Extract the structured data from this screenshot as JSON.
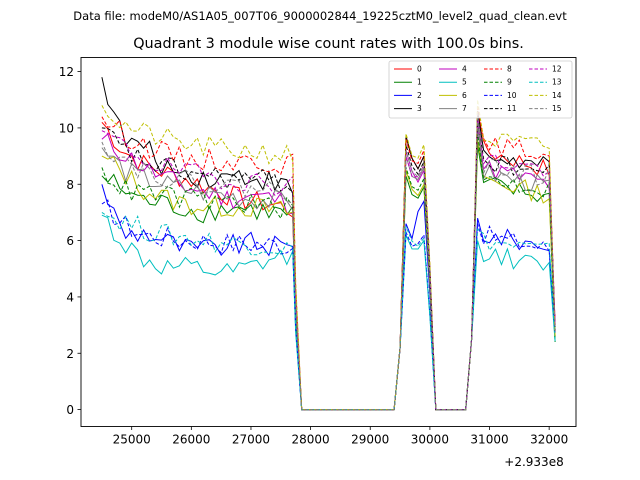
{
  "suptitle": "Data file: modeM0/AS1A05_007T06_9000002844_19225cztM0_level2_quad_clean.evt",
  "chart_data": {
    "type": "line",
    "title": "Quadrant 3 module wise count rates with 100.0s bins.",
    "xlabel": "",
    "ylabel": "",
    "x_offset_text": "+2.933e8",
    "xlim": [
      24150,
      32450
    ],
    "ylim": [
      -0.6,
      12.5
    ],
    "xticks": [
      25000,
      26000,
      27000,
      28000,
      29000,
      30000,
      31000,
      32000
    ],
    "yticks": [
      0,
      2,
      4,
      6,
      8,
      10,
      12
    ],
    "legend_position": "top-right",
    "series": [
      {
        "name": "0",
        "color": "#ff0000",
        "dash": "solid",
        "seg1": [
          10.2,
          9.2,
          8.7,
          8.4,
          8.2,
          7.9,
          7.6,
          7.4,
          7.3,
          7.1
        ],
        "g1": [
          9.7,
          9.0
        ],
        "g2": [
          10.6,
          9.2,
          8.5
        ]
      },
      {
        "name": "1",
        "color": "#008000",
        "dash": "solid",
        "seg1": [
          8.3,
          7.8,
          7.4,
          7.3,
          7.1,
          7.0,
          7.2,
          7.1,
          7.0,
          6.9
        ],
        "g1": [
          8.3,
          7.9
        ],
        "g2": [
          9.4,
          8.0,
          7.5
        ]
      },
      {
        "name": "2",
        "color": "#0000ff",
        "dash": "solid",
        "seg1": [
          8.0,
          6.2,
          6.3,
          6.0,
          5.7,
          5.7,
          5.8,
          5.9,
          5.8,
          5.7
        ],
        "g1": [
          6.6,
          7.4
        ],
        "g2": [
          6.8,
          6.2,
          5.8
        ]
      },
      {
        "name": "3",
        "color": "#000000",
        "dash": "solid",
        "seg1": [
          11.8,
          9.6,
          9.3,
          8.6,
          8.4,
          8.2,
          8.3,
          8.3,
          8.1,
          7.8
        ],
        "g1": [
          9.7,
          9.0
        ],
        "g2": [
          10.6,
          9.0,
          8.6
        ]
      },
      {
        "name": "4",
        "color": "#bf00bf",
        "dash": "solid",
        "seg1": [
          9.6,
          9.1,
          8.6,
          8.2,
          7.9,
          7.7,
          7.5,
          7.6,
          7.5,
          7.3
        ],
        "g1": [
          9.2,
          8.5
        ],
        "g2": [
          10.0,
          8.6,
          8.0
        ]
      },
      {
        "name": "5",
        "color": "#00bfbf",
        "dash": "solid",
        "seg1": [
          6.9,
          5.9,
          5.3,
          5.0,
          5.0,
          4.9,
          4.8,
          5.0,
          5.3,
          5.4
        ],
        "g1": [
          6.2,
          6.0
        ],
        "g2": [
          6.0,
          5.6,
          5.0
        ]
      },
      {
        "name": "6",
        "color": "#bfbf00",
        "dash": "solid",
        "seg1": [
          9.0,
          8.4,
          7.8,
          7.5,
          7.3,
          7.2,
          7.2,
          7.2,
          7.1,
          7.0
        ],
        "g1": [
          8.5,
          8.0
        ],
        "g2": [
          9.6,
          8.2,
          7.6
        ]
      },
      {
        "name": "7",
        "color": "#808080",
        "dash": "solid",
        "seg1": [
          9.3,
          8.5,
          8.2,
          8.0,
          7.8,
          7.7,
          7.6,
          7.5,
          7.4,
          7.3
        ],
        "g1": [
          9.0,
          8.6
        ],
        "g2": [
          10.2,
          8.4,
          7.9
        ]
      },
      {
        "name": "8",
        "color": "#ff0000",
        "dash": "dashed",
        "seg1": [
          10.4,
          9.8,
          9.4,
          9.1,
          8.9,
          8.9,
          8.8,
          8.8,
          8.8,
          8.7
        ],
        "g1": [
          9.6,
          9.2
        ],
        "g2": [
          10.8,
          9.4,
          9.1
        ]
      },
      {
        "name": "9",
        "color": "#008000",
        "dash": "dashed",
        "seg1": [
          8.6,
          7.8,
          7.7,
          7.6,
          7.5,
          7.4,
          7.4,
          7.3,
          7.2,
          7.1
        ],
        "g1": [
          8.6,
          8.2
        ],
        "g2": [
          9.8,
          8.2,
          7.8
        ]
      },
      {
        "name": "10",
        "color": "#0000ff",
        "dash": "dashed",
        "seg1": [
          7.3,
          6.6,
          6.2,
          6.1,
          6.0,
          6.0,
          5.9,
          5.9,
          5.9,
          5.8
        ],
        "g1": [
          6.3,
          6.2
        ],
        "g2": [
          6.6,
          6.2,
          5.7
        ]
      },
      {
        "name": "11",
        "color": "#000000",
        "dash": "dashed",
        "seg1": [
          10.0,
          9.2,
          8.8,
          8.6,
          8.4,
          8.3,
          8.2,
          8.2,
          8.1,
          8.0
        ],
        "g1": [
          9.4,
          8.8
        ],
        "g2": [
          10.3,
          8.8,
          8.4
        ]
      },
      {
        "name": "12",
        "color": "#bf00bf",
        "dash": "dashed",
        "seg1": [
          9.9,
          9.3,
          8.9,
          8.6,
          8.4,
          8.3,
          8.2,
          8.1,
          8.0,
          8.0
        ],
        "g1": [
          9.0,
          8.7
        ],
        "g2": [
          10.4,
          8.9,
          8.5
        ]
      },
      {
        "name": "13",
        "color": "#00bfbf",
        "dash": "dashed",
        "seg1": [
          7.0,
          6.7,
          6.4,
          6.2,
          6.1,
          6.0,
          5.9,
          5.9,
          5.8,
          5.7
        ],
        "g1": [
          6.5,
          6.1
        ],
        "g2": [
          6.4,
          6.0,
          5.6
        ]
      },
      {
        "name": "14",
        "color": "#bfbf00",
        "dash": "dashed",
        "seg1": [
          10.8,
          10.1,
          9.8,
          9.6,
          9.4,
          9.3,
          9.2,
          9.2,
          9.1,
          9.0
        ],
        "g1": [
          9.8,
          9.4
        ],
        "g2": [
          11.0,
          9.6,
          9.3
        ]
      },
      {
        "name": "15",
        "color": "#808080",
        "dash": "dashed",
        "seg1": [
          9.5,
          8.9,
          8.5,
          8.3,
          8.1,
          8.0,
          7.9,
          7.9,
          7.8,
          7.7
        ],
        "g1": [
          9.2,
          8.7
        ],
        "g2": [
          10.5,
          8.7,
          8.2
        ]
      }
    ]
  }
}
